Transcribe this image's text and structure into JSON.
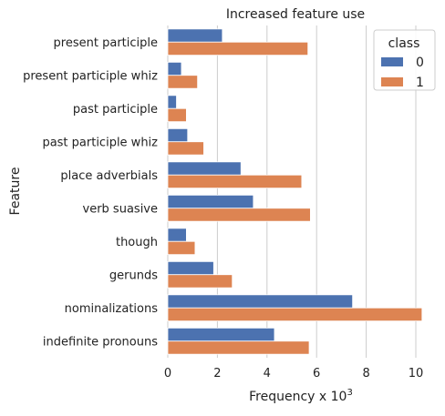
{
  "chart_data": {
    "type": "bar",
    "orientation": "horizontal",
    "title": "Increased feature use",
    "xlabel": "Frequency x 10",
    "xlabel_superscript": "3",
    "ylabel": "Feature",
    "xlim": [
      0,
      10.3
    ],
    "xticks": [
      0,
      2,
      4,
      6,
      8,
      10
    ],
    "grid": "vertical",
    "categories": [
      "present participle",
      "present participle whiz",
      "past participle",
      "past participle whiz",
      "place adverbials",
      "verb suasive",
      "though",
      "gerunds",
      "nominalizations",
      "indefinite pronouns"
    ],
    "series": [
      {
        "name": "0",
        "color": "#4c72b0",
        "values": [
          2.2,
          0.55,
          0.35,
          0.8,
          2.95,
          3.45,
          0.75,
          1.85,
          7.45,
          4.3
        ]
      },
      {
        "name": "1",
        "color": "#dd8452",
        "values": [
          5.65,
          1.2,
          0.75,
          1.45,
          5.4,
          5.75,
          1.1,
          2.6,
          10.25,
          5.7
        ]
      }
    ],
    "legend": {
      "title": "class",
      "placement": "top-right"
    }
  }
}
